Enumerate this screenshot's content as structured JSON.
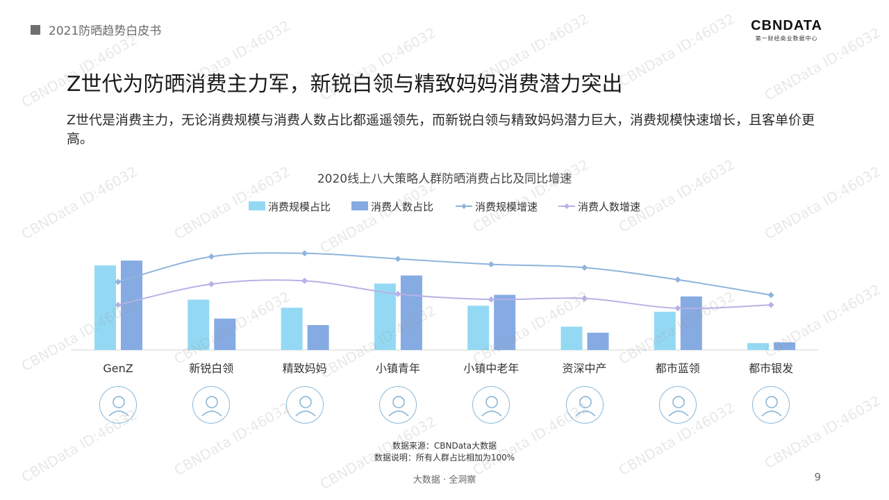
{
  "header": {
    "report_title": "2021防晒趋势白皮书",
    "logo_text": "CBNDATA",
    "logo_subtitle": "第一财经商业数据中心"
  },
  "slide": {
    "title": "Z世代为防晒消费主力军，新锐白领与精致妈妈消费潜力突出",
    "summary": "Z世代是消费主力，无论消费规模与消费人数占比都遥遥领先，而新锐白领与精致妈妈潜力巨大，消费规模快速增长，且客单价更高。"
  },
  "chart_data": {
    "type": "bar",
    "title": "2020线上八大策略人群防晒消费占比及同比增速",
    "categories": [
      "GenZ",
      "新锐白领",
      "精致妈妈",
      "小镇青年",
      "小镇中老年",
      "资深中产",
      "都市蓝领",
      "都市银发"
    ],
    "series": [
      {
        "name": "消费规模占比",
        "kind": "bar",
        "axis": "left",
        "color": "#94d9f3",
        "values": [
          21.0,
          12.5,
          10.5,
          16.5,
          11.0,
          5.8,
          9.5,
          1.7
        ]
      },
      {
        "name": "消费人数占比",
        "kind": "bar",
        "axis": "left",
        "color": "#86abe3",
        "values": [
          22.2,
          7.8,
          6.2,
          18.5,
          13.7,
          4.3,
          13.3,
          1.9
        ]
      },
      {
        "name": "消费规模增速",
        "kind": "line",
        "axis": "right",
        "color": "#8eb4dc",
        "values": [
          62,
          85,
          88,
          83,
          78,
          75,
          64,
          50
        ]
      },
      {
        "name": "消费人数增速",
        "kind": "line",
        "axis": "right",
        "color": "#b8b1e6",
        "values": [
          41,
          60,
          63,
          51,
          46,
          47,
          38,
          41
        ]
      }
    ],
    "ylim": [
      0,
      30
    ],
    "y2lim": [
      0,
      110
    ],
    "grid": false,
    "legend": "top-center"
  },
  "personas": [
    {
      "icon": "genz-persona-icon"
    },
    {
      "icon": "white-collar-persona-icon"
    },
    {
      "icon": "mom-persona-icon"
    },
    {
      "icon": "town-youth-persona-icon"
    },
    {
      "icon": "town-senior-persona-icon"
    },
    {
      "icon": "middle-class-persona-icon"
    },
    {
      "icon": "blue-collar-persona-icon"
    },
    {
      "icon": "urban-senior-persona-icon"
    }
  ],
  "notes": {
    "source": "数据来源：CBNData大数据",
    "explanation": "数据说明：所有人群占比相加为100%"
  },
  "footer": {
    "center_text": "大数据 · 全洞察",
    "page_number": "9"
  },
  "watermark": "CBNData ID:46032"
}
